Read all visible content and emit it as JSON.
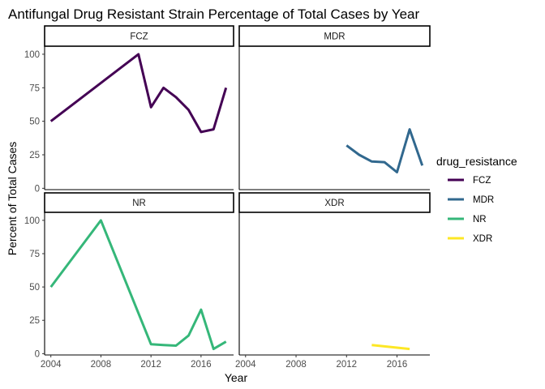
{
  "chart_data": {
    "type": "line",
    "title": "Antifungal Drug Resistant Strain Percentage of Total Cases by Year",
    "xlabel": "Year",
    "ylabel": "Percent of Total Cases",
    "xlim": [
      2003.5,
      2018.6
    ],
    "ylim": [
      -1,
      106
    ],
    "x_ticks": [
      2004,
      2008,
      2012,
      2016
    ],
    "y_ticks": [
      0,
      25,
      50,
      75,
      100
    ],
    "grid": false,
    "legend": {
      "title": "drug_resistance",
      "position": "right"
    },
    "facets": [
      "FCZ",
      "MDR",
      "NR",
      "XDR"
    ],
    "series": [
      {
        "name": "FCZ",
        "color": "#440154",
        "x": [
          2004,
          2011,
          2012,
          2013,
          2014,
          2015,
          2016,
          2017,
          2018
        ],
        "y": [
          50,
          100,
          60.5,
          75,
          68,
          58.5,
          42,
          44,
          75
        ]
      },
      {
        "name": "MDR",
        "color": "#31688E",
        "x": [
          2012,
          2013,
          2014,
          2015,
          2016,
          2017,
          2018
        ],
        "y": [
          32,
          25,
          20,
          19.5,
          12,
          44,
          17
        ]
      },
      {
        "name": "NR",
        "color": "#35B779",
        "x": [
          2004,
          2008,
          2012,
          2013,
          2014,
          2015,
          2016,
          2017,
          2018
        ],
        "y": [
          50,
          100,
          7,
          6.5,
          6,
          13.5,
          33,
          3.5,
          9
        ]
      },
      {
        "name": "XDR",
        "color": "#FDE725",
        "x": [
          2014,
          2017
        ],
        "y": [
          6.5,
          3.5
        ]
      }
    ]
  }
}
